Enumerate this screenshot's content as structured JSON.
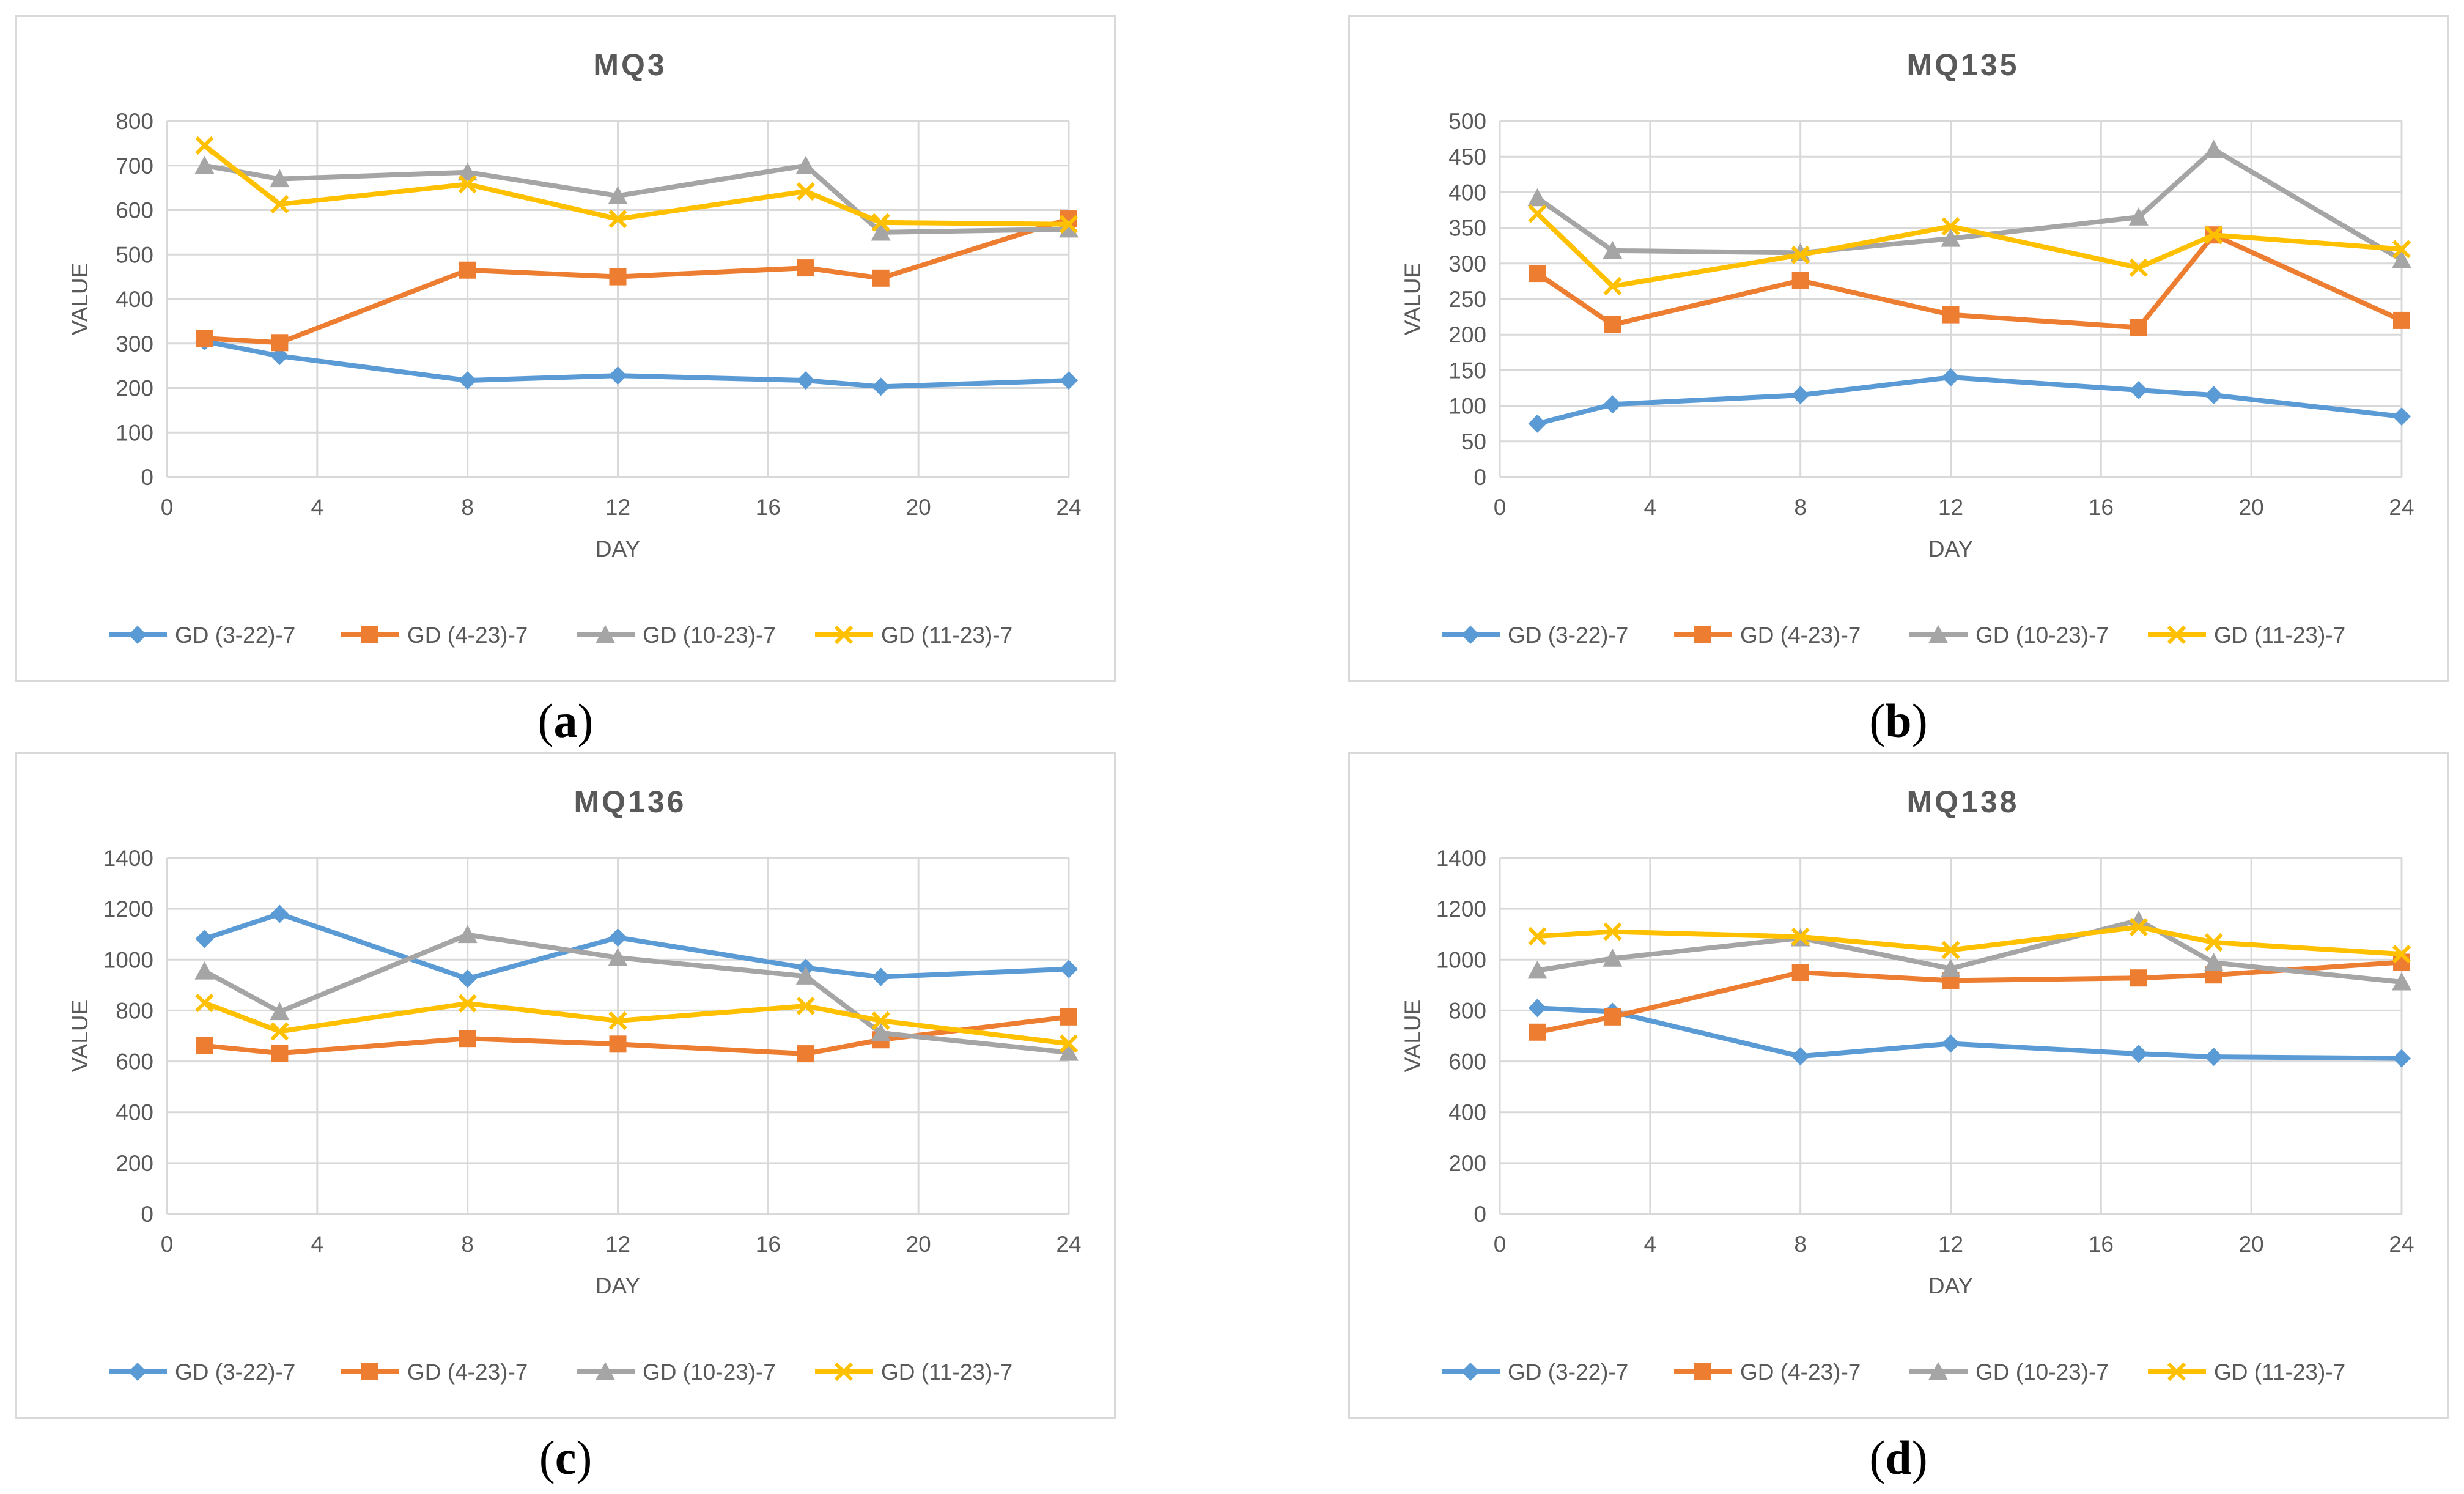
{
  "colors": {
    "series": [
      "#5b9bd5",
      "#ed7d31",
      "#a5a5a5",
      "#ffc000"
    ],
    "grid": "#d9d9d9",
    "text": "#595959"
  },
  "chart_data": [
    {
      "id": "a",
      "caption": "a",
      "type": "line",
      "title": "MQ3",
      "xlabel": "DAY",
      "ylabel": "VALUE",
      "xlim": [
        0,
        24
      ],
      "xticks": [
        0,
        4,
        8,
        12,
        16,
        20,
        24
      ],
      "ylim": [
        0,
        800
      ],
      "yticks": [
        0,
        100,
        200,
        300,
        400,
        500,
        600,
        700,
        800
      ],
      "x": [
        1,
        3,
        8,
        12,
        17,
        19,
        24
      ],
      "legend_position": "bottom",
      "series": [
        {
          "name": "GD (3-22)-7",
          "marker": "diamond",
          "values": [
            305,
            272,
            217,
            228,
            217,
            203,
            217
          ]
        },
        {
          "name": "GD (4-23)-7",
          "marker": "square",
          "values": [
            312,
            302,
            465,
            450,
            470,
            447,
            580
          ]
        },
        {
          "name": "GD (10-23)-7",
          "marker": "triangle",
          "values": [
            700,
            670,
            685,
            632,
            700,
            550,
            557
          ]
        },
        {
          "name": "GD (11-23)-7",
          "marker": "x",
          "values": [
            745,
            613,
            658,
            580,
            642,
            572,
            568
          ]
        }
      ]
    },
    {
      "id": "b",
      "caption": "b",
      "type": "line",
      "title": "MQ135",
      "xlabel": "DAY",
      "ylabel": "VALUE",
      "xlim": [
        0,
        24
      ],
      "xticks": [
        0,
        4,
        8,
        12,
        16,
        20,
        24
      ],
      "ylim": [
        0,
        500
      ],
      "yticks": [
        0,
        50,
        100,
        150,
        200,
        250,
        300,
        350,
        400,
        450,
        500
      ],
      "x": [
        1,
        3,
        8,
        12,
        17,
        19,
        24
      ],
      "legend_position": "bottom",
      "series": [
        {
          "name": "GD (3-22)-7",
          "marker": "diamond",
          "values": [
            75,
            102,
            115,
            140,
            122,
            115,
            85
          ]
        },
        {
          "name": "GD (4-23)-7",
          "marker": "square",
          "values": [
            286,
            214,
            276,
            228,
            210,
            340,
            220
          ]
        },
        {
          "name": "GD (10-23)-7",
          "marker": "triangle",
          "values": [
            392,
            318,
            315,
            335,
            365,
            460,
            305
          ]
        },
        {
          "name": "GD (11-23)-7",
          "marker": "x",
          "values": [
            370,
            268,
            312,
            352,
            294,
            340,
            320
          ]
        }
      ]
    },
    {
      "id": "c",
      "caption": "c",
      "type": "line",
      "title": "MQ136",
      "xlabel": "DAY",
      "ylabel": "VALUE",
      "xlim": [
        0,
        24
      ],
      "xticks": [
        0,
        4,
        8,
        12,
        16,
        20,
        24
      ],
      "ylim": [
        0,
        1400
      ],
      "yticks": [
        0,
        200,
        400,
        600,
        800,
        1000,
        1200,
        1400
      ],
      "x": [
        1,
        3,
        8,
        12,
        17,
        19,
        24
      ],
      "legend_position": "bottom",
      "series": [
        {
          "name": "GD (3-22)-7",
          "marker": "diamond",
          "values": [
            1082,
            1180,
            925,
            1087,
            968,
            932,
            963
          ]
        },
        {
          "name": "GD (4-23)-7",
          "marker": "square",
          "values": [
            662,
            632,
            690,
            668,
            630,
            685,
            775
          ]
        },
        {
          "name": "GD (10-23)-7",
          "marker": "triangle",
          "values": [
            955,
            795,
            1098,
            1008,
            935,
            712,
            635
          ]
        },
        {
          "name": "GD (11-23)-7",
          "marker": "x",
          "values": [
            830,
            718,
            828,
            760,
            818,
            760,
            670
          ]
        }
      ]
    },
    {
      "id": "d",
      "caption": "d",
      "type": "line",
      "title": "MQ138",
      "xlabel": "DAY",
      "ylabel": "VALUE",
      "xlim": [
        0,
        24
      ],
      "xticks": [
        0,
        4,
        8,
        12,
        16,
        20,
        24
      ],
      "ylim": [
        0,
        1400
      ],
      "yticks": [
        0,
        200,
        400,
        600,
        800,
        1000,
        1200,
        1400
      ],
      "x": [
        1,
        3,
        8,
        12,
        17,
        19,
        24
      ],
      "legend_position": "bottom",
      "series": [
        {
          "name": "GD (3-22)-7",
          "marker": "diamond",
          "values": [
            810,
            795,
            620,
            670,
            630,
            618,
            612
          ]
        },
        {
          "name": "GD (4-23)-7",
          "marker": "square",
          "values": [
            715,
            775,
            950,
            918,
            928,
            940,
            990
          ]
        },
        {
          "name": "GD (10-23)-7",
          "marker": "triangle",
          "values": [
            958,
            1005,
            1085,
            965,
            1155,
            988,
            912
          ]
        },
        {
          "name": "GD (11-23)-7",
          "marker": "x",
          "values": [
            1092,
            1110,
            1090,
            1038,
            1128,
            1068,
            1022
          ]
        }
      ]
    }
  ]
}
